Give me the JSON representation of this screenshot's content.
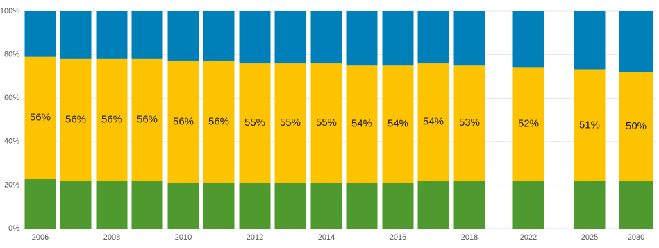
{
  "chart_data": {
    "type": "stacked_bar",
    "categories": [
      "2006",
      null,
      "2008",
      null,
      "2010",
      null,
      "2012",
      null,
      "2014",
      null,
      "2016",
      null,
      "2018",
      "2022",
      "2025",
      "2030"
    ],
    "series": [
      {
        "color": "#4e9a2e",
        "values": [
          23,
          22,
          22,
          22,
          21,
          21,
          21,
          21,
          21,
          21,
          21,
          22,
          22,
          22,
          22,
          22
        ]
      },
      {
        "color": "#fdc300",
        "values": [
          56,
          56,
          56,
          56,
          56,
          56,
          55,
          55,
          55,
          54,
          54,
          54,
          53,
          52,
          51,
          50
        ],
        "value_labels": [
          "56%",
          "56%",
          "56%",
          "56%",
          "56%",
          "56%",
          "55%",
          "55%",
          "55%",
          "54%",
          "54%",
          "54%",
          "53%",
          "52%",
          "51%",
          "50%"
        ]
      },
      {
        "color": "#0080b8",
        "values": [
          21,
          22,
          22,
          22,
          23,
          23,
          24,
          24,
          24,
          25,
          25,
          24,
          25,
          26,
          27,
          28
        ]
      }
    ],
    "ylim": [
      0,
      100
    ],
    "yticks": [
      {
        "value": 0,
        "label": "0%"
      },
      {
        "value": 20,
        "label": "20%"
      },
      {
        "value": 40,
        "label": "40%"
      },
      {
        "value": 60,
        "label": "60%"
      },
      {
        "value": 80,
        "label": "80%"
      },
      {
        "value": 100,
        "label": "100%"
      }
    ],
    "grid": true
  }
}
